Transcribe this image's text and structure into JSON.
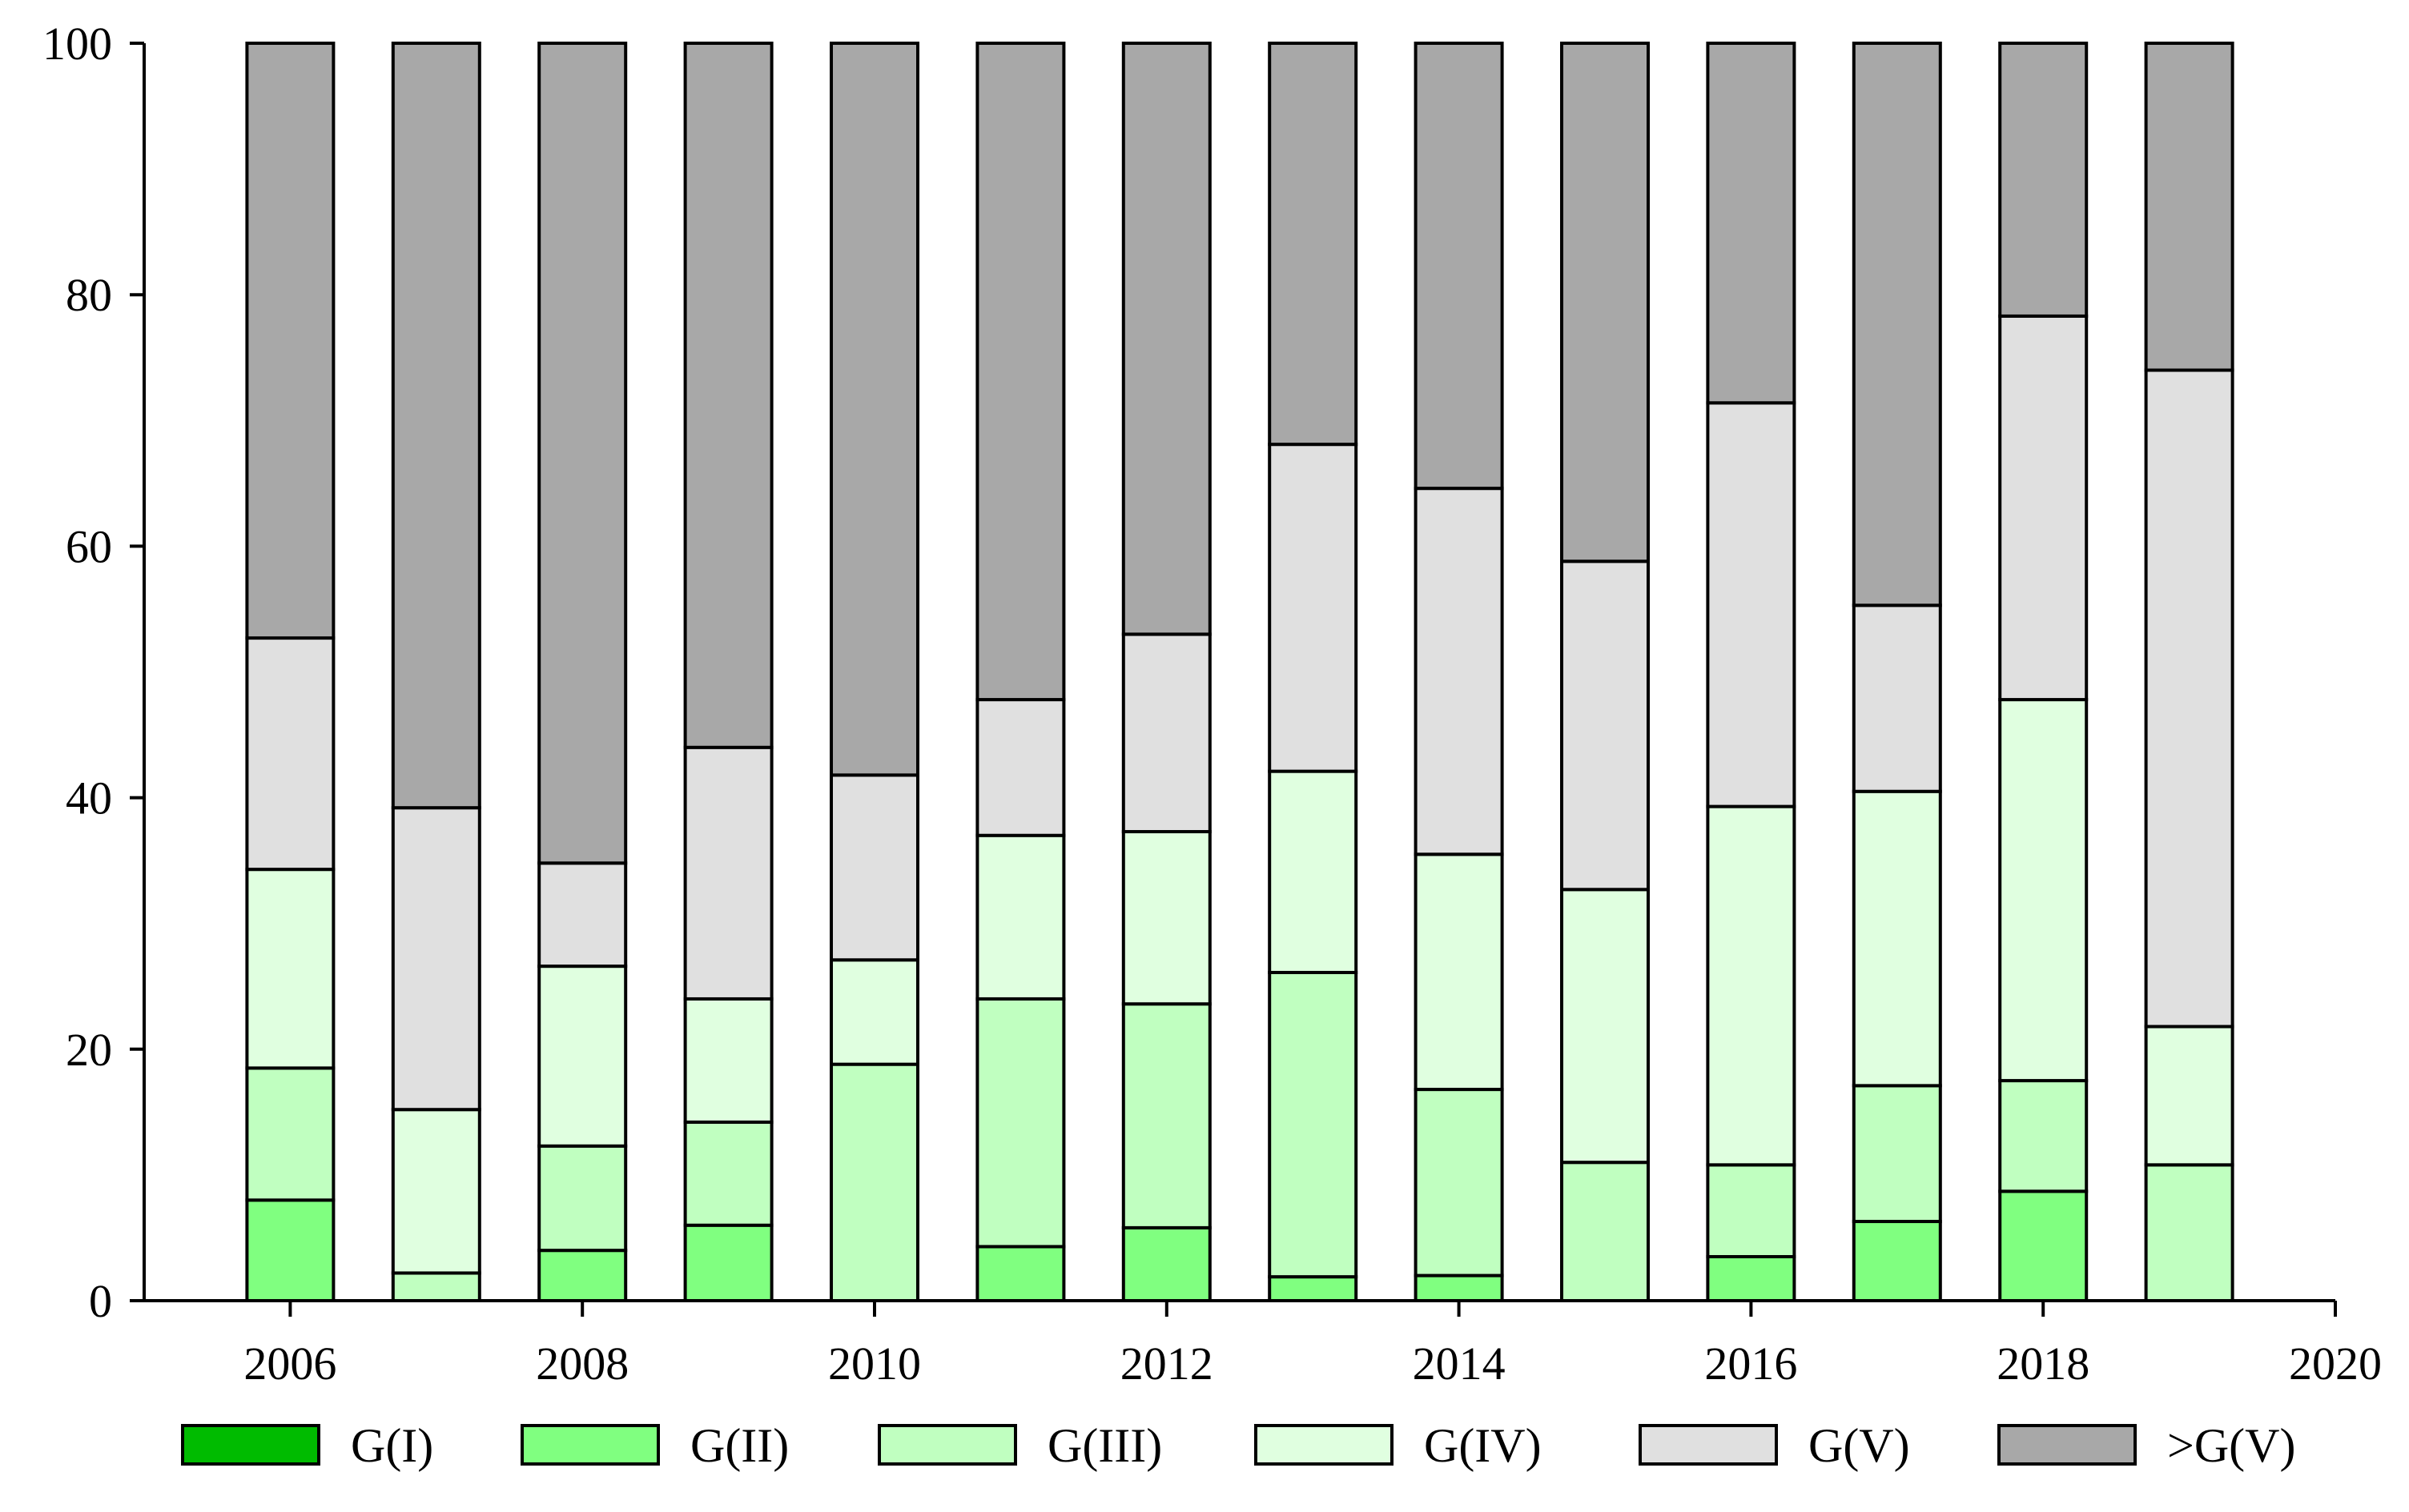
{
  "chart_data": {
    "type": "bar",
    "stacked": true,
    "title": "",
    "xlabel": "",
    "ylabel": "",
    "xlim": [
      2005,
      2020
    ],
    "ylim": [
      0,
      100
    ],
    "xticks": [
      "2006",
      "2008",
      "2010",
      "2012",
      "2014",
      "2016",
      "2018",
      "2020"
    ],
    "yticks": [
      "0",
      "20",
      "40",
      "60",
      "80",
      "100"
    ],
    "grid": false,
    "legend_position": "bottom",
    "categories": [
      2006,
      2007,
      2008,
      2009,
      2010,
      2011,
      2012,
      2013,
      2014,
      2015,
      2016,
      2017,
      2018,
      2019
    ],
    "series": [
      {
        "name": "G(I)",
        "color": "#00bb00",
        "values": [
          0,
          0,
          0,
          0,
          0,
          0,
          0,
          0,
          0,
          0,
          0,
          0,
          0,
          0
        ]
      },
      {
        "name": "G(II)",
        "color": "#80ff80",
        "values": [
          8,
          0,
          4,
          6,
          0,
          4.3,
          5.8,
          1.9,
          2,
          0,
          3.5,
          6.3,
          8.7,
          0
        ]
      },
      {
        "name": "G(III)",
        "color": "#c0ffc0",
        "values": [
          10.5,
          2.2,
          8.3,
          8.2,
          18.8,
          19.7,
          17.8,
          24.2,
          14.8,
          11,
          7.3,
          10.8,
          8.8,
          10.8
        ]
      },
      {
        "name": "G(IV)",
        "color": "#e0ffe0",
        "values": [
          15.8,
          13,
          14.3,
          9.8,
          8.3,
          13,
          13.7,
          16,
          18.7,
          21.7,
          28.5,
          23.4,
          30.3,
          11
        ]
      },
      {
        "name": "G(V)",
        "color": "#e0e0e0",
        "values": [
          18.4,
          24,
          8.2,
          20,
          14.7,
          10.8,
          15.7,
          26,
          29.1,
          26.1,
          32.1,
          14.8,
          30.5,
          52.2
        ]
      },
      {
        "name": ">G(V)",
        "color": "#a8a8a8",
        "values": [
          47.3,
          60.8,
          65.2,
          56,
          58.2,
          52.2,
          47,
          31.9,
          35.4,
          41.2,
          28.6,
          44.7,
          21.7,
          26
        ]
      }
    ]
  }
}
